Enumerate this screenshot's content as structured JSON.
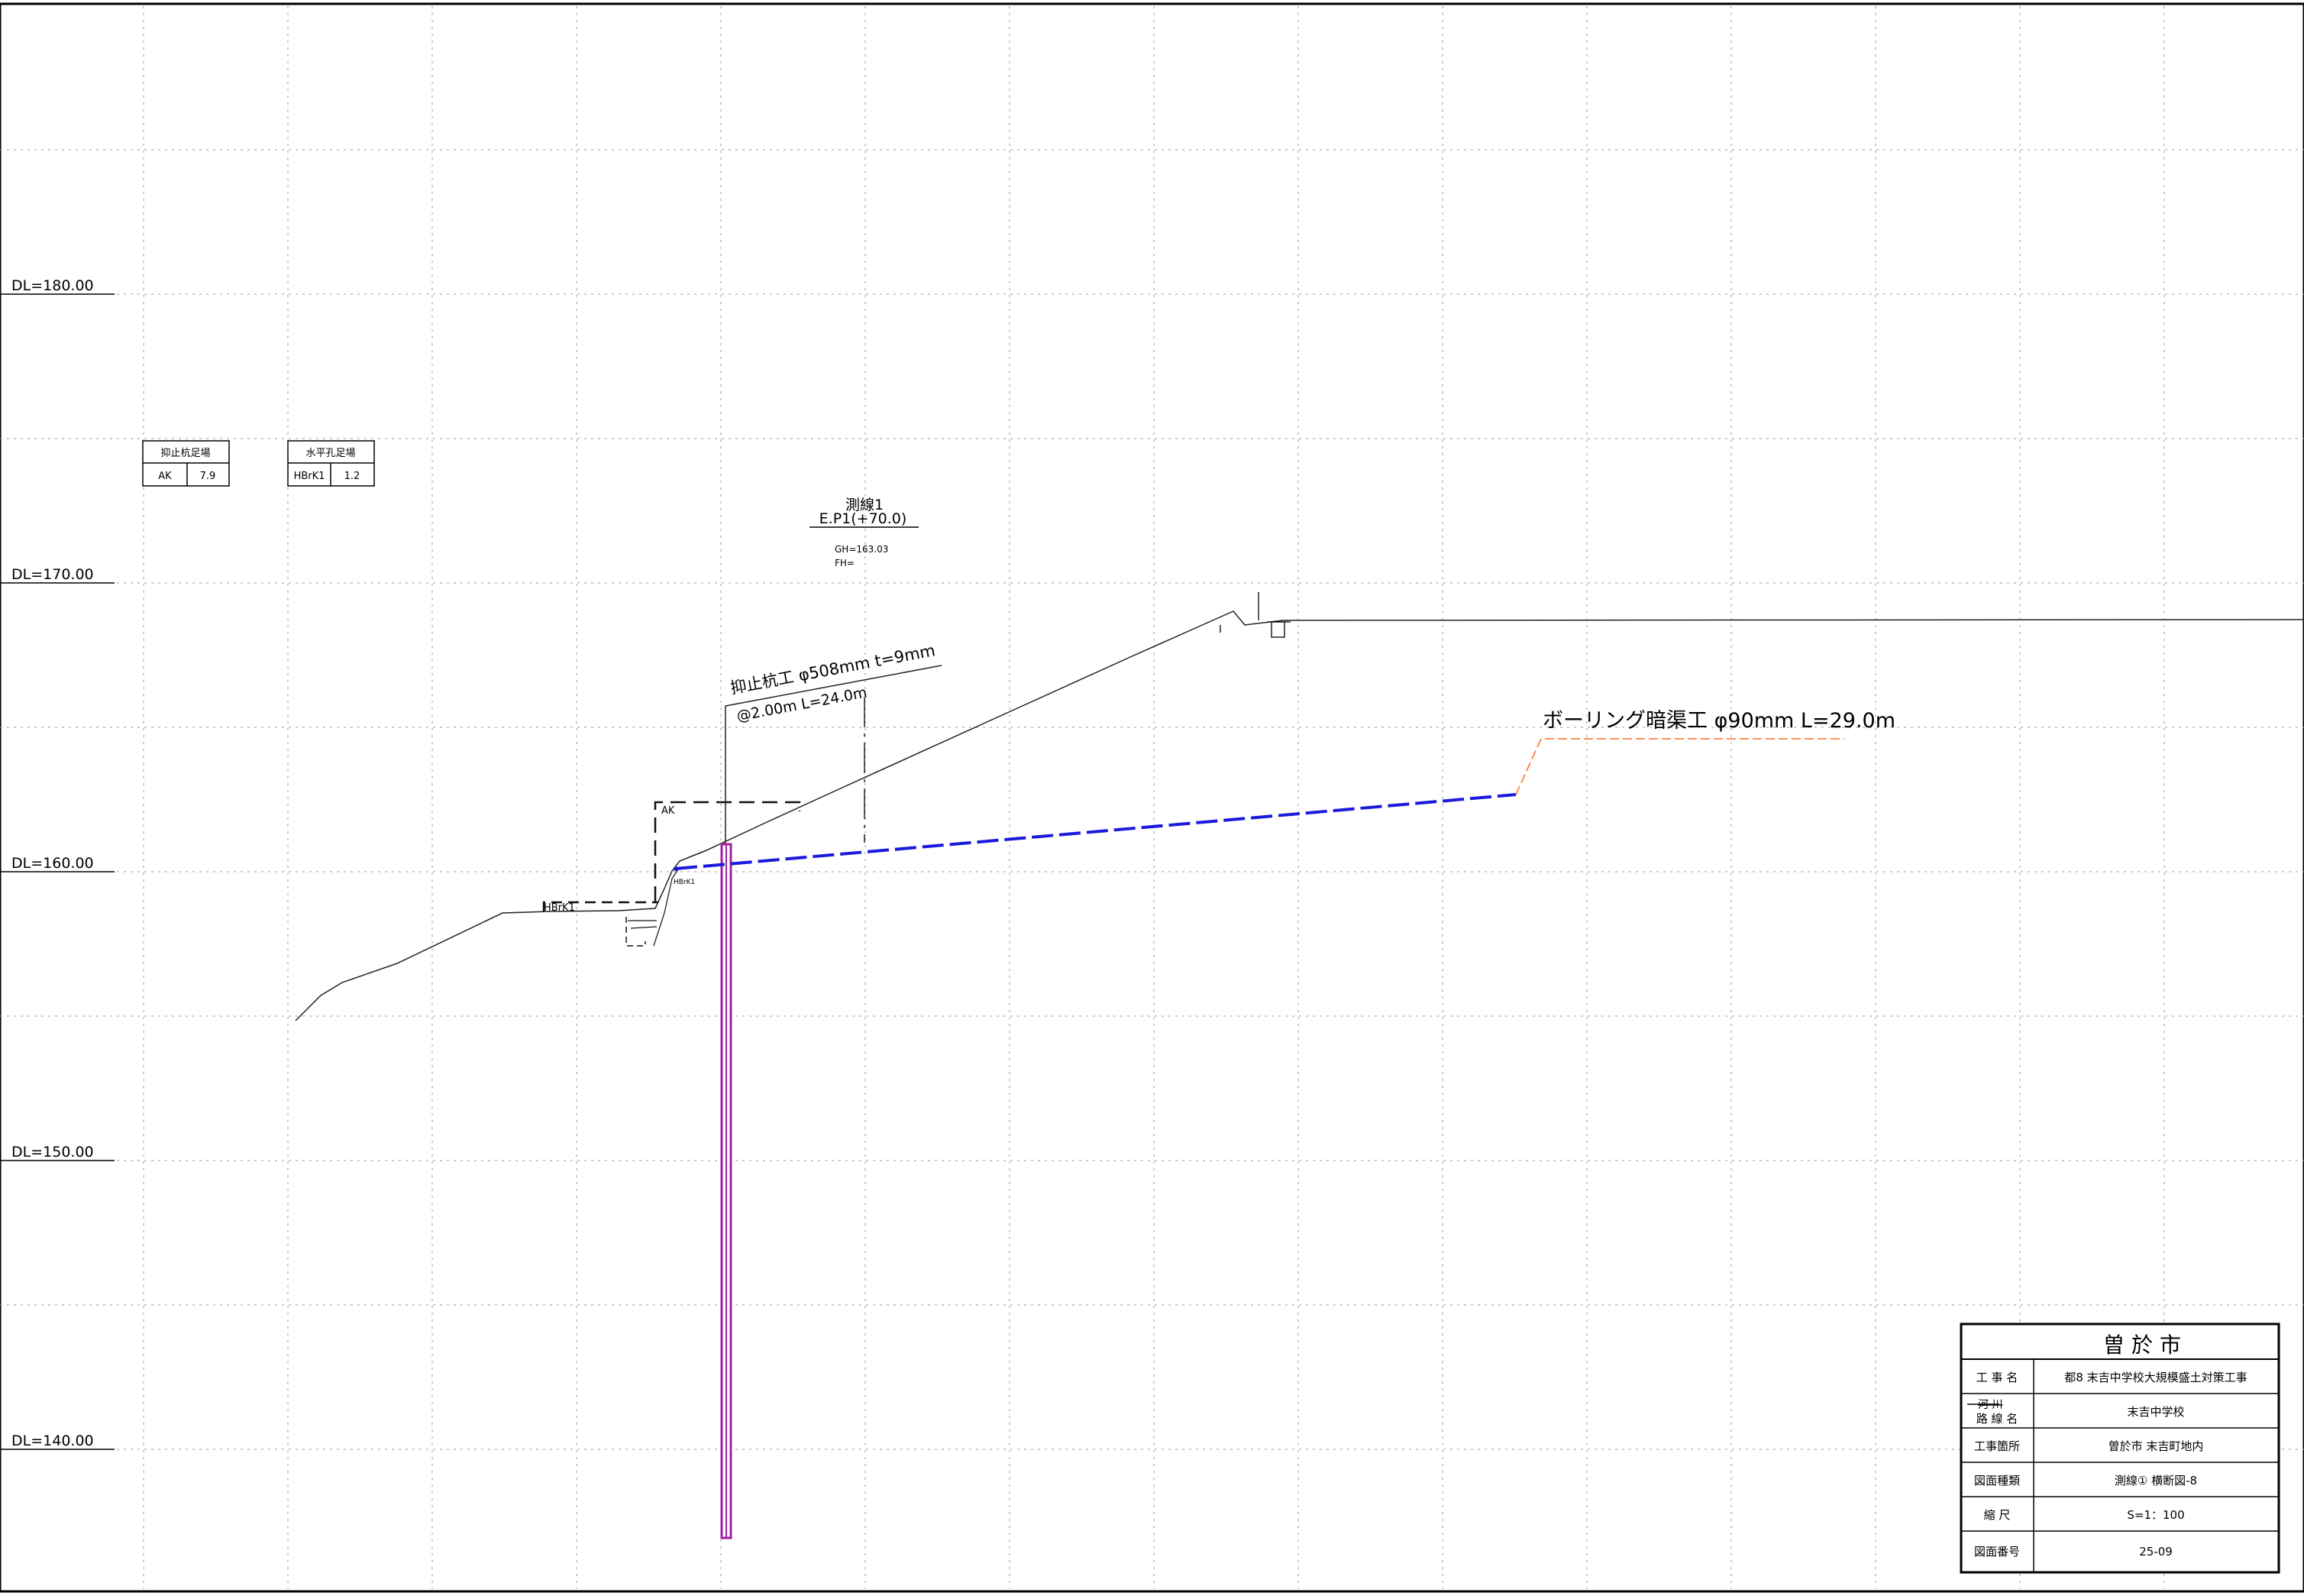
{
  "drawing": {
    "elevations": [
      "DL=180.00",
      "DL=170.00",
      "DL=160.00",
      "DL=150.00",
      "DL=140.00"
    ],
    "legend_pile": {
      "header": "抑止杭足場",
      "code": "AK",
      "value": "7.9"
    },
    "legend_hole": {
      "header": "水平孔足場",
      "code": "HBrK1",
      "value": "1.2"
    },
    "survey": {
      "title": "測線1",
      "point": "E.P1(+70.0)",
      "gh": "GH=163.03",
      "fh": "FH="
    },
    "pile_label_line1": "抑止杭工 φ508mm t=9mm",
    "pile_label_line2": "@2.00m L=24.0m",
    "drain_label": "ボーリング暗渠工 φ90mm L=29.0m",
    "ak_label": "AK",
    "hbrk_label": "HBrK1",
    "small_mark": "I",
    "colors": {
      "drain": "#1a1adc",
      "pile": "#a020a0",
      "leader": "#ff8040",
      "grid": "#9a9a9a"
    }
  },
  "title_block": {
    "city": "曽 於 市",
    "rows": [
      {
        "label": "工 事 名",
        "value": "都8 末吉中学校大規模盛土対策工事"
      },
      {
        "label_strike": "河 川",
        "label": "路 線 名",
        "value": "末吉中学校"
      },
      {
        "label": "工事箇所",
        "value": "曽於市 末吉町地内"
      },
      {
        "label": "図面種類",
        "value": "測線① 横断図-8"
      },
      {
        "label": "縮 尺",
        "value": "S=1：100"
      },
      {
        "label": "図面番号",
        "value": "25-09"
      }
    ]
  }
}
